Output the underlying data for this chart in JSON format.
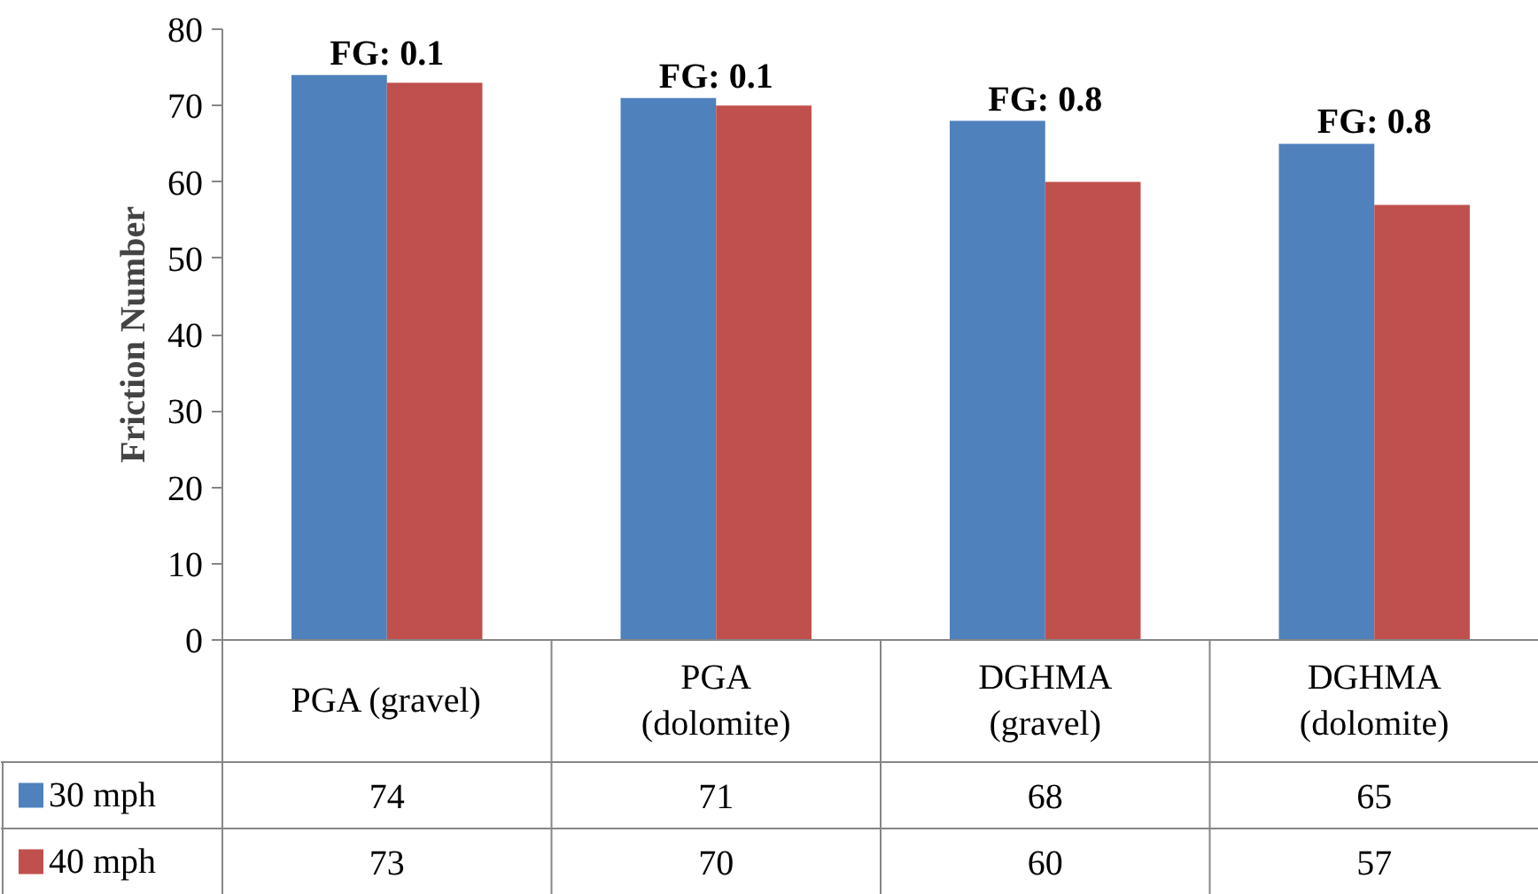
{
  "chart_data": {
    "type": "bar",
    "ylabel": "Friction Number",
    "categories": [
      "PGA (gravel)",
      "PGA (dolomite)",
      "DGHMA (gravel)",
      "DGHMA (dolomite)"
    ],
    "series": [
      {
        "name": "30 mph",
        "color": "#4f81bd",
        "values": [
          74,
          71,
          68,
          65
        ]
      },
      {
        "name": "40 mph",
        "color": "#c0504d",
        "values": [
          73,
          70,
          60,
          57
        ]
      }
    ],
    "ylim": [
      0,
      80
    ],
    "yticks": [
      0,
      10,
      20,
      30,
      40,
      50,
      60,
      70,
      80
    ],
    "grid": false,
    "legend": "bottom",
    "data_labels": true,
    "annotations": [
      "FG: 0.1",
      "FG: 0.1",
      "FG: 0.8",
      "FG: 0.8"
    ]
  }
}
